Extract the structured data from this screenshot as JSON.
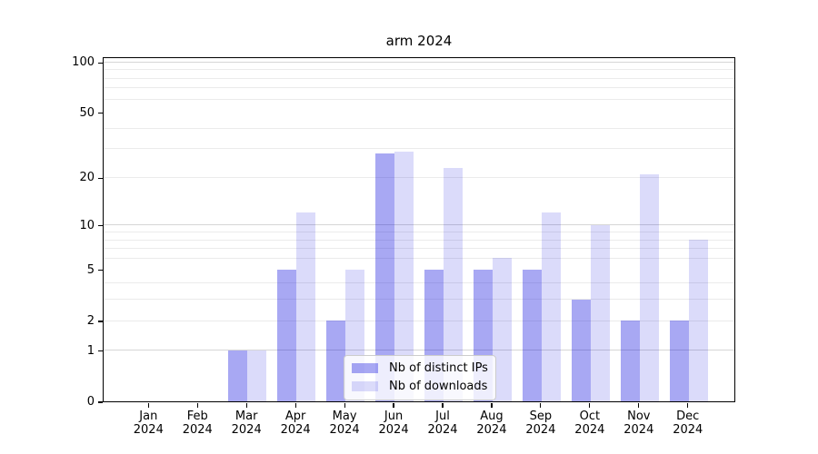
{
  "chart_data": {
    "type": "bar",
    "title": "arm 2024",
    "categories": [
      "Jan 2024",
      "Feb 2024",
      "Mar 2024",
      "Apr 2024",
      "May 2024",
      "Jun 2024",
      "Jul 2024",
      "Aug 2024",
      "Sep 2024",
      "Oct 2024",
      "Nov 2024",
      "Dec 2024"
    ],
    "series": [
      {
        "name": "Nb of distinct IPs",
        "values": [
          0,
          0,
          1,
          5,
          2,
          28,
          5,
          5,
          5,
          3,
          2,
          2
        ],
        "color": "rgba(0,0,220,0.34)"
      },
      {
        "name": "Nb of downloads",
        "values": [
          0,
          0,
          1,
          12,
          5,
          29,
          23,
          6,
          12,
          10,
          21,
          8
        ],
        "color": "rgba(0,0,220,0.14)"
      }
    ],
    "xlabel": "",
    "ylabel": "",
    "yscale": "log1p",
    "yticks": [
      0,
      1,
      2,
      5,
      10,
      20,
      50,
      100
    ],
    "grid_major_lines": [
      1,
      10,
      100
    ],
    "grid_minor_lines": [
      2,
      3,
      4,
      6,
      7,
      8,
      9,
      20,
      30,
      40,
      60,
      70,
      80,
      90
    ],
    "ylim": [
      0,
      108
    ],
    "grid": true,
    "legend_position": "lower center inside"
  },
  "colors": {
    "background": "#ffffff",
    "axis_frame": "#000000",
    "grid_major": "#d6d6d6",
    "grid_minor": "#ebebeb",
    "tick_text": "#000000",
    "legend_bg": "rgba(255,255,255,0.8)",
    "legend_border": "#cccccc",
    "bar_distinct_ips_hex": "#a8a8f3",
    "bar_downloads_hex": "#dcdcfa"
  }
}
